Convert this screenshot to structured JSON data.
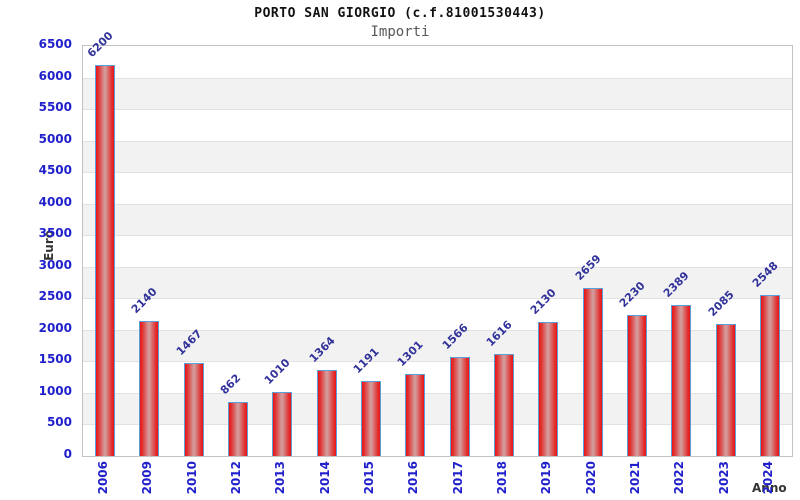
{
  "header": {
    "title": "PORTO SAN GIORGIO (c.f.81001530443)",
    "subtitle": "Importi"
  },
  "chart_data": {
    "type": "bar",
    "title": "PORTO SAN GIORGIO (c.f.81001530443)",
    "subtitle": "Importi",
    "xlabel": "Anno",
    "ylabel": "Euro",
    "categories": [
      "2006",
      "2009",
      "2010",
      "2012",
      "2013",
      "2014",
      "2015",
      "2016",
      "2017",
      "2018",
      "2019",
      "2020",
      "2021",
      "2022",
      "2023",
      "2024"
    ],
    "values": [
      6200,
      2140,
      1467,
      862,
      1010,
      1364,
      1191,
      1301,
      1566,
      1616,
      2130,
      2659,
      2230,
      2389,
      2085,
      2548
    ],
    "ylim": [
      0,
      6500
    ],
    "y_ticks": [
      0,
      500,
      1000,
      1500,
      2000,
      2500,
      3000,
      3500,
      4000,
      4500,
      5000,
      5500,
      6000,
      6500
    ],
    "grid": "horizontal-bands",
    "legend_position": "none",
    "colors": {
      "bar_edge_red": "#ec1414",
      "bar_center_light": "#d49a9a",
      "bar_border_blue": "#5b9fd8",
      "axis_tick_label_blue": "#2121cc",
      "value_label_navy": "#32329b",
      "axis_title_dark": "#333333",
      "band_gray": "#f2f2f2",
      "band_white": "#ffffff",
      "gridline_gray": "#e2e2e2",
      "plot_border_gray": "#c3c3c3",
      "subtitle_gray": "#595959"
    }
  }
}
